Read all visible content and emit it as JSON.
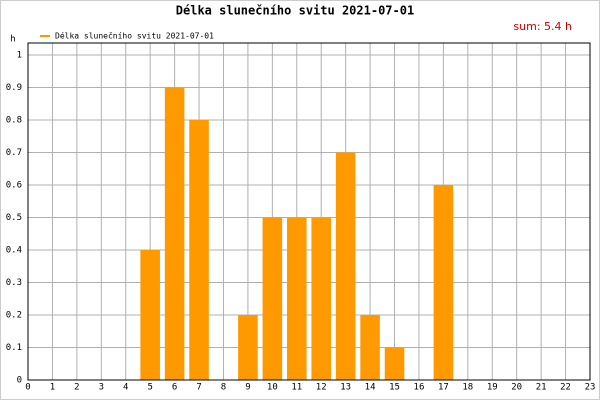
{
  "chart_data": {
    "type": "bar",
    "title": "Délka slunečního svitu 2021-07-01",
    "y_label": "h",
    "annotation": "sum: 5.4 h",
    "x": [
      0,
      1,
      2,
      3,
      4,
      5,
      6,
      7,
      8,
      9,
      10,
      11,
      12,
      13,
      14,
      15,
      16,
      17,
      18,
      19,
      20,
      21,
      22,
      23
    ],
    "series": [
      {
        "name": "Délka slunečního svitu 2021-07-01",
        "color": "#ff9900",
        "values": [
          0,
          0,
          0,
          0,
          0,
          0.4,
          0.9,
          0.8,
          0,
          0.2,
          0.5,
          0.5,
          0.5,
          0.7,
          0.2,
          0.1,
          0,
          0.6,
          0,
          0,
          0,
          0,
          0,
          0
        ]
      }
    ],
    "xlim": [
      0,
      23
    ],
    "xticks": [
      0,
      1,
      2,
      3,
      4,
      5,
      6,
      7,
      8,
      9,
      10,
      11,
      12,
      13,
      14,
      15,
      16,
      17,
      18,
      19,
      20,
      21,
      22,
      23
    ],
    "ylim": [
      0,
      1
    ],
    "yticks": [
      0,
      0.1,
      0.2,
      0.3,
      0.4,
      0.5,
      0.6,
      0.7,
      0.8,
      0.9,
      1
    ],
    "grid": true
  }
}
